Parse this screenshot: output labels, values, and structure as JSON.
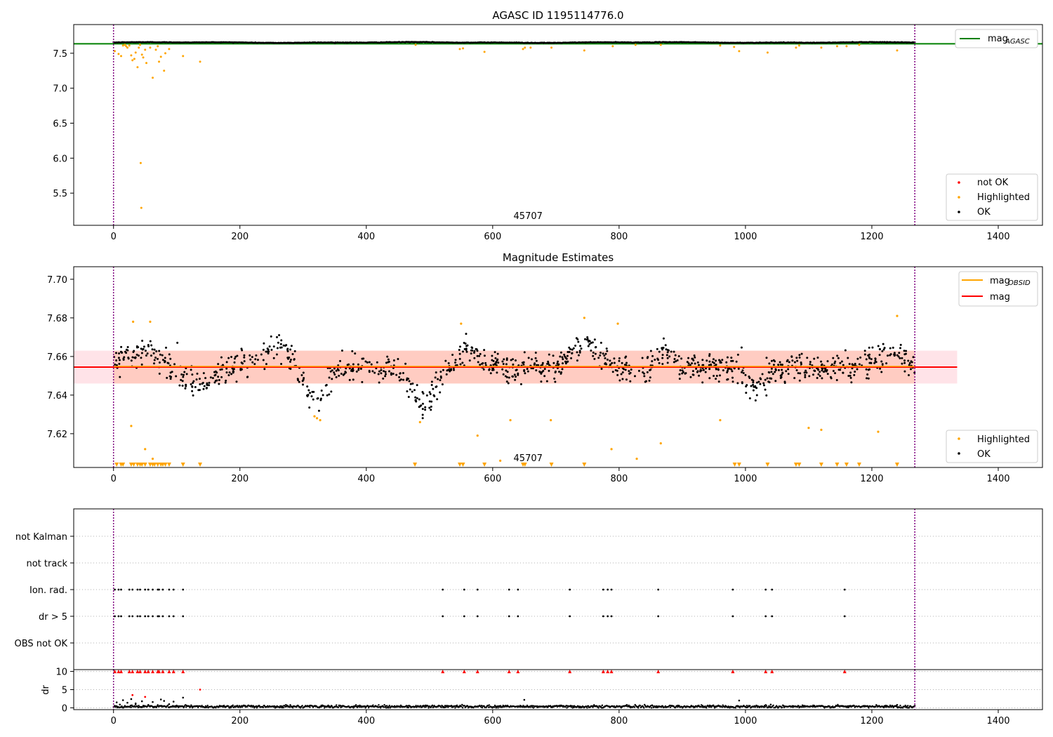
{
  "colors": {
    "ok": "#000000",
    "highlighted": "#ffa500",
    "not_ok": "#ff0000",
    "agasc_line": "#008000",
    "obsid_line": "#ffa500",
    "mag_line": "#ff0000",
    "band_outer": "#ffc0cb",
    "band_inner": "#ffa07a",
    "vline": "#800080",
    "grid": "#b0b0b0"
  },
  "chart_data": [
    {
      "type": "scatter",
      "title": "AGASC ID 1195114776.0",
      "xlim": [
        -63,
        1470
      ],
      "ylim": [
        5.04,
        7.91
      ],
      "x_ticks": [
        0,
        200,
        400,
        600,
        800,
        1000,
        1200,
        1400
      ],
      "y_ticks": [
        5.5,
        6.0,
        6.5,
        7.0,
        7.5
      ],
      "obsid_label": "45707",
      "obsid_label_x": 633,
      "vlines_x": [
        0,
        1268
      ],
      "hline": {
        "name": "mag_AGASC",
        "y": 7.635,
        "xmin": -63,
        "xmax": 1470
      },
      "legend_top": [
        {
          "label": "mag",
          "sub": "AGASC",
          "style": "line",
          "color": "#008000"
        }
      ],
      "legend_bottom": [
        {
          "label": "not OK",
          "color": "#ff0000"
        },
        {
          "label": "Highlighted",
          "color": "#ffa500"
        },
        {
          "label": "OK",
          "color": "#000000"
        }
      ],
      "ok_series": {
        "x_start": 0,
        "x_end": 1268,
        "y_mean": 7.654,
        "y_amplitude": 0.006
      },
      "highlighted_points": [
        [
          2,
          7.53
        ],
        [
          8,
          7.49
        ],
        [
          12,
          7.46
        ],
        [
          15,
          7.61
        ],
        [
          18,
          7.62
        ],
        [
          20,
          7.6
        ],
        [
          22,
          7.58
        ],
        [
          25,
          7.61
        ],
        [
          28,
          7.47
        ],
        [
          30,
          7.4
        ],
        [
          33,
          7.42
        ],
        [
          35,
          7.51
        ],
        [
          38,
          7.3
        ],
        [
          40,
          7.58
        ],
        [
          42,
          7.62
        ],
        [
          43,
          5.93
        ],
        [
          44,
          5.29
        ],
        [
          45,
          7.48
        ],
        [
          47,
          7.44
        ],
        [
          50,
          7.55
        ],
        [
          52,
          7.36
        ],
        [
          58,
          7.58
        ],
        [
          62,
          7.15
        ],
        [
          67,
          7.55
        ],
        [
          70,
          7.6
        ],
        [
          72,
          7.38
        ],
        [
          75,
          7.45
        ],
        [
          80,
          7.25
        ],
        [
          82,
          7.5
        ],
        [
          88,
          7.56
        ],
        [
          110,
          7.46
        ],
        [
          137,
          7.38
        ],
        [
          478,
          7.62
        ],
        [
          548,
          7.56
        ],
        [
          553,
          7.57
        ],
        [
          587,
          7.52
        ],
        [
          648,
          7.56
        ],
        [
          651,
          7.58
        ],
        [
          660,
          7.58
        ],
        [
          693,
          7.58
        ],
        [
          745,
          7.54
        ],
        [
          790,
          7.6
        ],
        [
          826,
          7.62
        ],
        [
          866,
          7.62
        ],
        [
          960,
          7.61
        ],
        [
          982,
          7.59
        ],
        [
          990,
          7.53
        ],
        [
          1035,
          7.51
        ],
        [
          1080,
          7.58
        ],
        [
          1085,
          7.61
        ],
        [
          1120,
          7.58
        ],
        [
          1145,
          7.6
        ],
        [
          1160,
          7.6
        ],
        [
          1180,
          7.62
        ],
        [
          1240,
          7.54
        ]
      ]
    },
    {
      "type": "scatter",
      "title": "Magnitude Estimates",
      "xlim": [
        -63,
        1470
      ],
      "ylim": [
        7.6025,
        7.7065
      ],
      "x_ticks": [
        0,
        200,
        400,
        600,
        800,
        1000,
        1200,
        1400
      ],
      "y_ticks": [
        7.62,
        7.64,
        7.66,
        7.68,
        7.7
      ],
      "y_tick_labels": [
        "7.62",
        "7.64",
        "7.66",
        "7.68",
        "7.70"
      ],
      "obsid_label": "45707",
      "obsid_label_x": 633,
      "vlines_x": [
        0,
        1268
      ],
      "mag_line": {
        "y": 7.6545,
        "xmin": -63,
        "xmax": 1335
      },
      "mag_obsid_line": {
        "y": 7.6545,
        "xmin": 0,
        "xmax": 1268
      },
      "band_outer": {
        "y_low": 7.646,
        "y_high": 7.663,
        "xmin": -63,
        "xmax": 1335
      },
      "band_inner": {
        "y_low": 7.646,
        "y_high": 7.663,
        "xmin": 0,
        "xmax": 1268
      },
      "legend_top": [
        {
          "label": "mag",
          "sub": "OBSID",
          "style": "line",
          "color": "#ffa500"
        },
        {
          "label": "mag",
          "sub": "",
          "style": "line",
          "color": "#ff0000"
        }
      ],
      "legend_bottom": [
        {
          "label": "Highlighted",
          "color": "#ffa500"
        },
        {
          "label": "OK",
          "color": "#000000"
        }
      ],
      "ok_series": {
        "x_start": 0,
        "x_end": 1268,
        "y_mean": 7.6545,
        "y_spread": 0.006,
        "waves": [
          {
            "center": 25,
            "width": 20,
            "amp": 0.007
          },
          {
            "center": 60,
            "width": 20,
            "amp": 0.008
          },
          {
            "center": 140,
            "width": 30,
            "amp": -0.009
          },
          {
            "center": 255,
            "width": 25,
            "amp": 0.012
          },
          {
            "center": 320,
            "width": 25,
            "amp": -0.017
          },
          {
            "center": 490,
            "width": 25,
            "amp": -0.02
          },
          {
            "center": 560,
            "width": 15,
            "amp": 0.01
          },
          {
            "center": 745,
            "width": 30,
            "amp": 0.012
          },
          {
            "center": 875,
            "width": 15,
            "amp": 0.008
          },
          {
            "center": 1015,
            "width": 20,
            "amp": -0.011
          },
          {
            "center": 1230,
            "width": 30,
            "amp": 0.008
          }
        ]
      },
      "highlighted_points": [
        [
          28,
          7.624
        ],
        [
          31,
          7.678
        ],
        [
          50,
          7.612
        ],
        [
          58,
          7.678
        ],
        [
          62,
          7.607
        ],
        [
          318,
          7.629
        ],
        [
          322,
          7.628
        ],
        [
          327,
          7.627
        ],
        [
          485,
          7.626
        ],
        [
          550,
          7.677
        ],
        [
          576,
          7.619
        ],
        [
          612,
          7.606
        ],
        [
          628,
          7.627
        ],
        [
          692,
          7.627
        ],
        [
          745,
          7.68
        ],
        [
          788,
          7.612
        ],
        [
          798,
          7.677
        ],
        [
          828,
          7.607
        ],
        [
          866,
          7.615
        ],
        [
          960,
          7.627
        ],
        [
          1100,
          7.623
        ],
        [
          1120,
          7.622
        ],
        [
          1210,
          7.621
        ],
        [
          1240,
          7.681
        ]
      ],
      "highlighted_triangles_x": [
        5,
        12,
        15,
        28,
        32,
        38,
        42,
        45,
        50,
        58,
        62,
        65,
        70,
        75,
        78,
        82,
        88,
        110,
        137,
        477,
        548,
        553,
        587,
        648,
        651,
        693,
        745,
        983,
        990,
        1035,
        1080,
        1085,
        1120,
        1145,
        1160,
        1180,
        1240
      ]
    },
    {
      "type": "scatter",
      "title": "",
      "xlim": [
        -63,
        1470
      ],
      "x_ticks": [
        0,
        200,
        400,
        600,
        800,
        1000,
        1200,
        1400
      ],
      "vlines_x": [
        0,
        1268
      ],
      "categories": [
        "not Kalman",
        "not track",
        "Ion. rad.",
        "dr > 5",
        "OBS not OK"
      ],
      "flag_points_x": [
        2,
        8,
        12,
        25,
        30,
        38,
        42,
        50,
        55,
        62,
        70,
        72,
        78,
        88,
        95,
        110,
        521,
        555,
        576,
        626,
        640,
        722,
        775,
        782,
        788,
        862,
        980,
        1032,
        1042,
        1157
      ],
      "flag_rows": [
        "Ion. rad.",
        "dr > 5"
      ]
    },
    {
      "type": "scatter",
      "title": "",
      "ylabel": "dr",
      "xlim": [
        -63,
        1470
      ],
      "ylim": [
        -0.5,
        10.5
      ],
      "x_ticks": [
        0,
        200,
        400,
        600,
        800,
        1000,
        1200,
        1400
      ],
      "y_ticks": [
        0,
        5,
        10
      ],
      "vlines_x": [
        0,
        1268
      ],
      "not_ok_markers_x": [
        2,
        8,
        12,
        25,
        30,
        38,
        42,
        50,
        55,
        62,
        70,
        72,
        78,
        88,
        95,
        110,
        521,
        555,
        576,
        626,
        640,
        722,
        775,
        782,
        788,
        862,
        980,
        1032,
        1042,
        1157
      ],
      "red_points": [
        [
          30,
          3.5
        ],
        [
          50,
          3.0
        ],
        [
          137,
          5.0
        ]
      ],
      "ok_points_extra": [
        [
          5,
          1.5
        ],
        [
          10,
          0.9
        ],
        [
          15,
          2.1
        ],
        [
          22,
          1.4
        ],
        [
          28,
          2.4
        ],
        [
          35,
          1.2
        ],
        [
          45,
          1.8
        ],
        [
          55,
          0.8
        ],
        [
          62,
          1.6
        ],
        [
          75,
          2.3
        ],
        [
          80,
          1.9
        ],
        [
          88,
          1.0
        ],
        [
          95,
          1.7
        ],
        [
          110,
          2.8
        ],
        [
          650,
          2.2
        ],
        [
          990,
          2.0
        ],
        [
          1040,
          0.9
        ],
        [
          1240,
          0.8
        ]
      ],
      "ok_series": {
        "x_start": 0,
        "x_end": 1268,
        "y_mean": 0.35,
        "y_amplitude": 0.3
      }
    }
  ]
}
